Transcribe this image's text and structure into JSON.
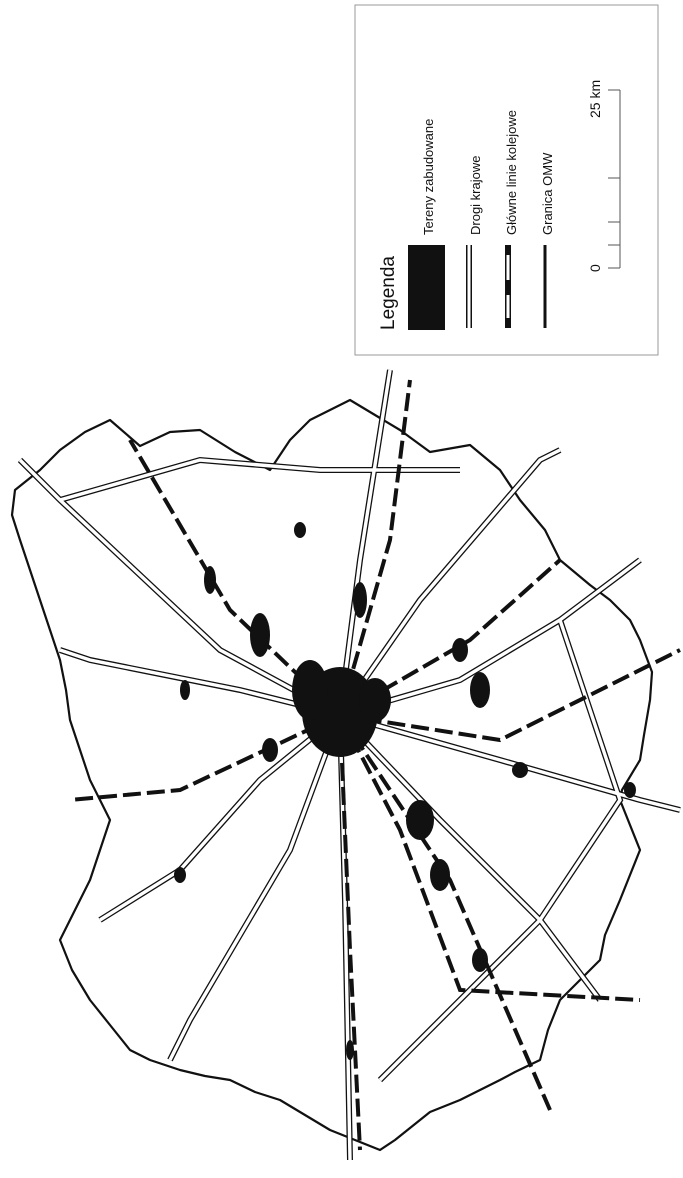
{
  "legend": {
    "title": "Legenda",
    "items": [
      "Tereny zabudowane",
      "Drogi krajowe",
      "Główne linie kolejowe",
      "Granica OMW"
    ]
  },
  "scale": {
    "start": "0",
    "end": "25 km"
  }
}
